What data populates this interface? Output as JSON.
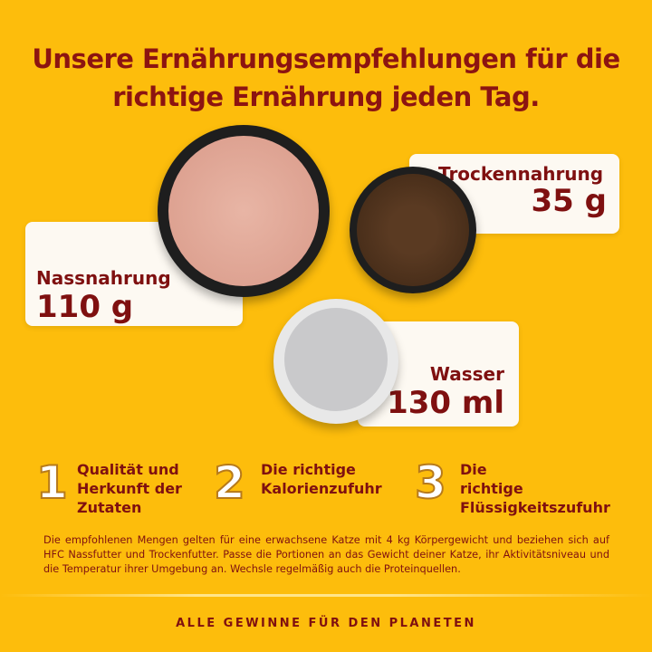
{
  "title": "Unsere Ernährungsempfehlungen für die richtige Ernährung jeden Tag.",
  "portions": [
    {
      "label": "Nassnahrung",
      "value": "110 g"
    },
    {
      "label": "Trockennahrung",
      "value": "35 g"
    },
    {
      "label": "Wasser",
      "value": "130 ml"
    }
  ],
  "points": [
    {
      "number": "1",
      "text": "Qualität und Herkunft der Zutaten"
    },
    {
      "number": "2",
      "text": "Die richtige Kalorienzufuhr"
    },
    {
      "number": "3",
      "text": "Die richtige Flüssigkeitszufuhr"
    }
  ],
  "note": "Die empfohlenen Mengen gelten für eine erwachsene Katze mit 4 kg Körpergewicht und beziehen sich auf HFC Nassfutter und Trockenfutter. Passe die Portionen an das Gewicht deiner Katze, ihr Aktivitätsniveau und die Temperatur ihrer Umgebung an. Wechsle regelmäßig auch die Proteinquellen.",
  "footer": "ALLE GEWINNE FÜR DEN PLANETEN",
  "colors": {
    "background": "#fdbd0c",
    "text": "#7f1010"
  }
}
